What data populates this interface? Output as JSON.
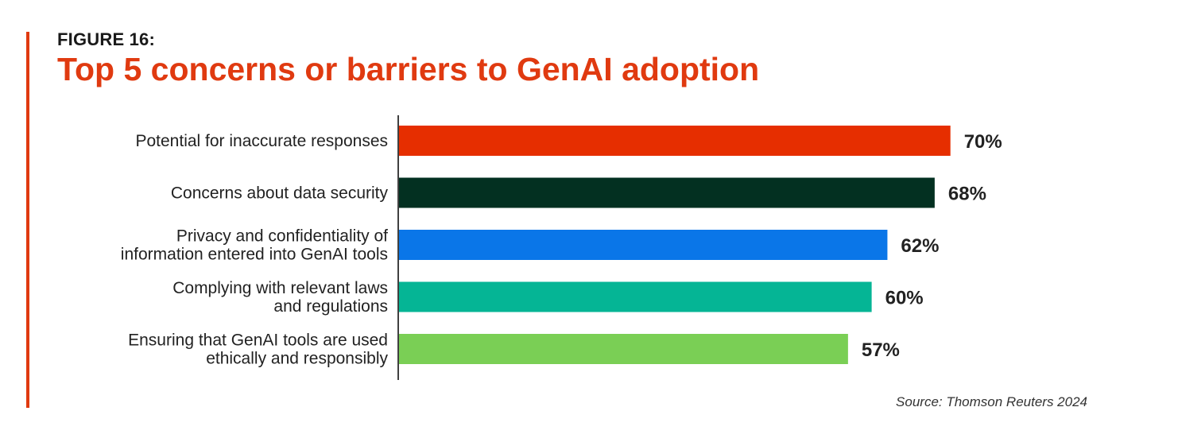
{
  "figure_label": "FIGURE 16:",
  "title": "Top 5 concerns or barriers to GenAI adoption",
  "source": "Source: Thomson Reuters 2024",
  "colors": {
    "accent": "#e03a10",
    "title": "#e03a10",
    "axis": "#000000"
  },
  "chart_data": {
    "type": "bar",
    "orientation": "horizontal",
    "title": "Top 5 concerns or barriers to GenAI adoption",
    "xlabel": "",
    "ylabel": "",
    "xlim": [
      0,
      100
    ],
    "grid": false,
    "value_suffix": "%",
    "categories": [
      [
        "Potential for inaccurate responses"
      ],
      [
        "Concerns about data security"
      ],
      [
        "Privacy and confidentiality of",
        "information entered into GenAI tools"
      ],
      [
        "Complying with relevant laws",
        "and regulations"
      ],
      [
        "Ensuring that GenAI tools are used",
        "ethically and responsibly"
      ]
    ],
    "values": [
      70,
      68,
      62,
      60,
      57
    ],
    "value_labels": [
      "70%",
      "68%",
      "62%",
      "60%",
      "57%"
    ],
    "bar_colors": [
      "#e62e00",
      "#033021",
      "#0a76e8",
      "#05b595",
      "#7acf55"
    ]
  }
}
